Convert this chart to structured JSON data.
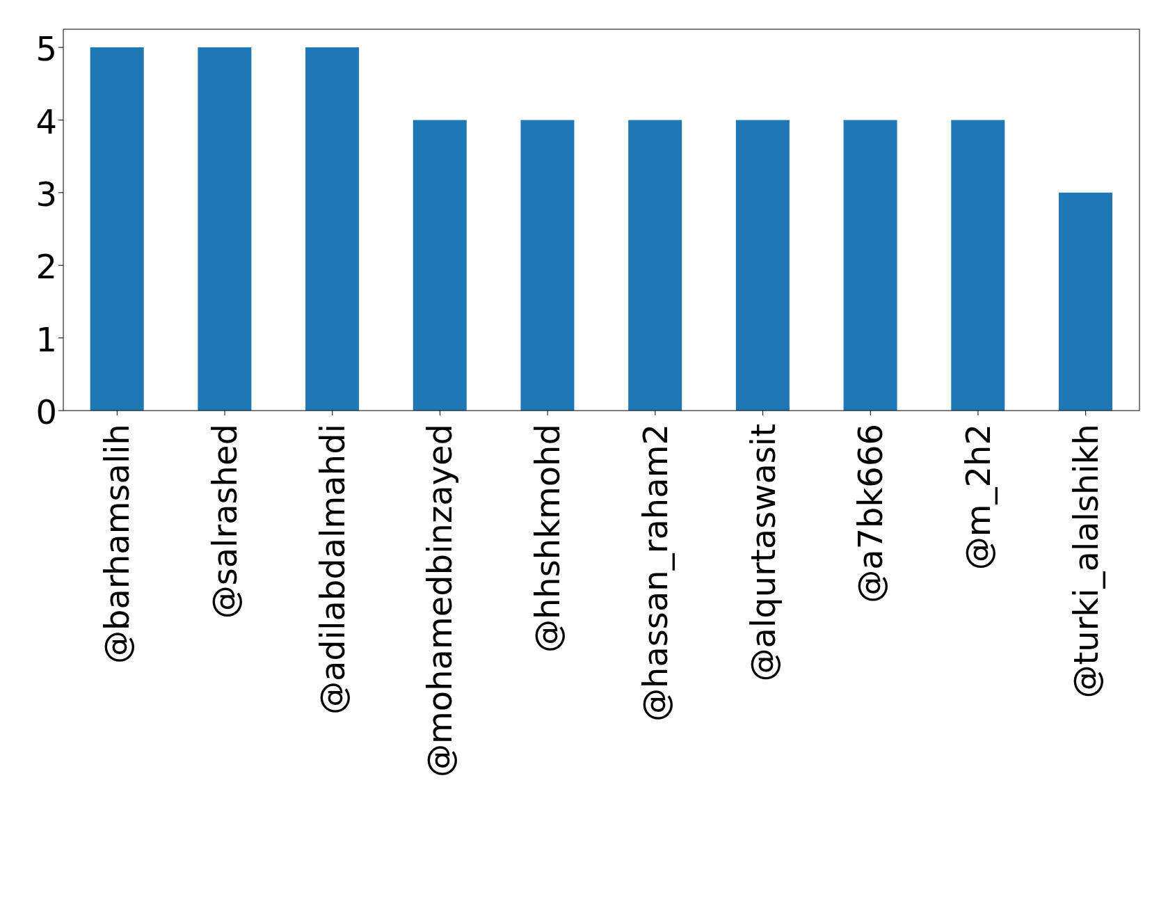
{
  "chart_data": {
    "type": "bar",
    "categories": [
      "@barhamsalih",
      "@salrashed",
      "@adilabdalmahdi",
      "@mohamedbinzayed",
      "@hhshkmohd",
      "@hassan_raham2",
      "@alqurtaswasit",
      "@a7bk666",
      "@m_2h2",
      "@turki_alalshikh"
    ],
    "values": [
      5,
      5,
      5,
      4,
      4,
      4,
      4,
      4,
      4,
      3
    ],
    "color": "#1f77b4",
    "ylim": [
      0,
      5.25
    ],
    "yticks": [
      0,
      1,
      2,
      3,
      4,
      5
    ]
  }
}
